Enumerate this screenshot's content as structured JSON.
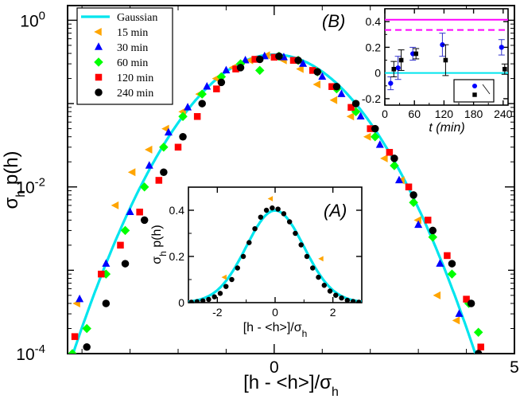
{
  "colors": {
    "gaussian": "#00e5ee",
    "15 min": "#ffa500",
    "30 min": "#0000ff",
    "60 min": "#00ff00",
    "120 min": "#ff0000",
    "240 min": "#000000",
    "inset_solid": "#ff00ff",
    "inset_dashed": "#ff00ff",
    "inset_blue": "#0000ff",
    "inset_black": "#000000"
  },
  "chart_data": [
    {
      "type": "scatter",
      "scale_y": "log",
      "xlim": [
        -4.3,
        5
      ],
      "ylim": [
        0.0001,
        1.5
      ],
      "x_ticks": [
        "0",
        "5"
      ],
      "y_ticks": [
        "10",
        "10",
        "10"
      ],
      "y_tick_exps": [
        "0",
        "-2",
        "-4"
      ],
      "xlabel": {
        "a": "[h - <h>]/σ",
        "sub": "h"
      },
      "ylabel": {
        "a": "σ",
        "sub": "h",
        "b": " p(h)"
      },
      "legend": [
        {
          "label": "Gaussian",
          "key": "gaussian",
          "shape": "line"
        },
        {
          "label": "15 min",
          "key": "15 min",
          "shape": "triangle-left"
        },
        {
          "label": "30 min",
          "key": "30 min",
          "shape": "triangle-up"
        },
        {
          "label": "60 min",
          "key": "60 min",
          "shape": "diamond"
        },
        {
          "label": "120 min",
          "key": "120 min",
          "shape": "square"
        },
        {
          "label": "240 min",
          "key": "240 min",
          "shape": "circle"
        }
      ],
      "gaussian_mean": 0,
      "gaussian_sd": 1.03,
      "series": [
        {
          "key": "15 min",
          "shape": "triangle-left",
          "x": [
            -4.1,
            -3.3,
            -2.95,
            -2.6,
            -2.25,
            -1.9,
            -1.55,
            -1.2,
            -0.85,
            -0.5,
            -0.15,
            0.2,
            0.55,
            0.9,
            1.25,
            1.6,
            1.95,
            2.3,
            2.65,
            3.0,
            3.4,
            3.8
          ],
          "y": [
            0.0004,
            0.006,
            0.015,
            0.028,
            0.05,
            0.08,
            0.13,
            0.2,
            0.27,
            0.33,
            0.38,
            0.33,
            0.26,
            0.17,
            0.11,
            0.07,
            0.04,
            0.022,
            0.012,
            0.004,
            0.0005,
            0.00025
          ]
        },
        {
          "key": "30 min",
          "shape": "triangle-up",
          "x": [
            -4.05,
            -3.5,
            -3.0,
            -2.6,
            -2.2,
            -1.8,
            -1.4,
            -1.0,
            -0.6,
            -0.2,
            0.2,
            0.6,
            1.0,
            1.4,
            1.8,
            2.2,
            2.6,
            3.0,
            3.45,
            3.85
          ],
          "y": [
            0.00045,
            0.0012,
            0.005,
            0.018,
            0.045,
            0.09,
            0.16,
            0.25,
            0.33,
            0.37,
            0.36,
            0.3,
            0.21,
            0.13,
            0.07,
            0.032,
            0.012,
            0.0035,
            0.0012,
            0.0003
          ]
        },
        {
          "key": "60 min",
          "shape": "diamond",
          "x": [
            -4.2,
            -3.9,
            -3.5,
            -3.1,
            -2.7,
            -2.3,
            -1.9,
            -1.5,
            -1.1,
            -0.7,
            -0.3,
            0.1,
            0.5,
            0.9,
            1.3,
            1.7,
            2.1,
            2.5,
            2.9,
            3.3,
            3.7,
            4.05,
            4.25
          ],
          "y": [
            0.0001,
            0.0002,
            0.0009,
            0.003,
            0.01,
            0.03,
            0.07,
            0.13,
            0.21,
            0.3,
            0.25,
            0.37,
            0.33,
            0.24,
            0.15,
            0.08,
            0.04,
            0.018,
            0.0065,
            0.0025,
            0.0009,
            0.0004,
            0.00018
          ]
        },
        {
          "key": "120 min",
          "shape": "square",
          "x": [
            -4.15,
            -3.6,
            -3.2,
            -2.8,
            -2.4,
            -2.0,
            -1.6,
            -1.2,
            -0.8,
            -0.4,
            0.0,
            0.4,
            0.8,
            1.2,
            1.6,
            2.0,
            2.4,
            2.8,
            3.2,
            3.6,
            4.0,
            4.3
          ],
          "y": [
            0.00016,
            0.0009,
            0.002,
            0.005,
            0.012,
            0.03,
            0.07,
            0.15,
            0.26,
            0.34,
            0.36,
            0.33,
            0.25,
            0.16,
            0.09,
            0.05,
            0.026,
            0.01,
            0.004,
            0.0015,
            0.00045,
            0.00012
          ]
        },
        {
          "key": "240 min",
          "shape": "circle",
          "x": [
            -3.9,
            -3.5,
            -3.1,
            -2.7,
            -2.3,
            -1.9,
            -1.5,
            -1.1,
            -0.7,
            -0.3,
            0.1,
            0.5,
            0.9,
            1.3,
            1.7,
            2.1,
            2.5,
            2.9,
            3.3,
            3.7,
            4.1,
            4.25
          ],
          "y": [
            0.00012,
            0.0004,
            0.0012,
            0.004,
            0.015,
            0.04,
            0.1,
            0.18,
            0.27,
            0.34,
            0.37,
            0.33,
            0.24,
            0.16,
            0.1,
            0.05,
            0.022,
            0.008,
            0.003,
            0.0012,
            0.0004,
            0.0001
          ]
        }
      ]
    },
    {
      "type": "scatter",
      "panel_label": "(A)",
      "xlim": [
        -3,
        3
      ],
      "ylim": [
        0,
        0.5
      ],
      "x_ticks": [
        -2,
        0,
        2
      ],
      "y_ticks": [
        0,
        0.2,
        0.4
      ],
      "x_tick_labels": [
        "-2",
        "0",
        "2"
      ],
      "y_tick_labels": [
        "0",
        "0.2",
        "0.4"
      ],
      "xlabel": {
        "a": "[h - <h>]/σ",
        "sub": "h"
      },
      "ylabel": {
        "a": "σ",
        "sub": "h",
        "b": " p(h)"
      },
      "gaussian_sd": 1.0,
      "series": [
        {
          "key": "240 min",
          "shape": "circle",
          "x": [
            -2.9,
            -2.7,
            -2.5,
            -2.3,
            -2.1,
            -1.9,
            -1.7,
            -1.5,
            -1.3,
            -1.1,
            -0.9,
            -0.7,
            -0.5,
            -0.3,
            -0.1,
            0.1,
            0.3,
            0.5,
            0.7,
            0.9,
            1.1,
            1.3,
            1.5,
            1.7,
            1.9,
            2.1,
            2.3,
            2.5,
            2.7,
            2.9
          ],
          "y": [
            0.002,
            0.004,
            0.008,
            0.014,
            0.025,
            0.04,
            0.07,
            0.1,
            0.15,
            0.2,
            0.26,
            0.32,
            0.37,
            0.4,
            0.41,
            0.405,
            0.385,
            0.35,
            0.3,
            0.25,
            0.2,
            0.15,
            0.11,
            0.075,
            0.05,
            0.032,
            0.02,
            0.01,
            0.005,
            0.002
          ]
        },
        {
          "key": "15 min",
          "shape": "triangle-left",
          "x": [
            -1.75,
            -0.15,
            1.6
          ],
          "y": [
            0.11,
            0.45,
            0.19
          ]
        }
      ]
    },
    {
      "type": "scatter",
      "panel_label": "(B)",
      "xlim": [
        0,
        250
      ],
      "ylim": [
        -0.25,
        0.5
      ],
      "x_ticks": [
        0,
        60,
        120,
        180,
        240
      ],
      "y_ticks": [
        -0.2,
        0,
        0.2,
        0.4
      ],
      "x_tick_labels": [
        "0",
        "60",
        "120",
        "180",
        "240"
      ],
      "y_tick_labels": [
        "-0.2",
        "0",
        "0.2",
        "0.4"
      ],
      "xlabel": {
        "a": "t",
        "b": "(min)"
      },
      "hlines": [
        {
          "y": 0.415,
          "key": "inset_solid",
          "dash": ""
        },
        {
          "y": 0.335,
          "key": "inset_dashed",
          "dash": "8,5"
        },
        {
          "y": 0.0,
          "key": "gaussian",
          "dash": ""
        }
      ],
      "series": [
        {
          "key": "inset_blue",
          "shape": "circle",
          "x": [
            15,
            30,
            60,
            120,
            240
          ],
          "y": [
            -0.08,
            0.04,
            0.15,
            0.22,
            0.2
          ],
          "err": [
            0.05,
            0.09,
            0.05,
            0.09,
            0.06
          ]
        },
        {
          "key": "inset_black",
          "shape": "square",
          "x": [
            15,
            30,
            60,
            120,
            240
          ],
          "y": [
            0.03,
            0.1,
            0.15,
            0.1,
            0.03
          ],
          "err": [
            0.06,
            0.08,
            0.04,
            0.12,
            0.04
          ]
        }
      ],
      "legend_box": [
        {
          "key": "inset_blue",
          "shape": "circle"
        },
        {
          "key": "inset_black",
          "shape": "square"
        }
      ]
    }
  ]
}
